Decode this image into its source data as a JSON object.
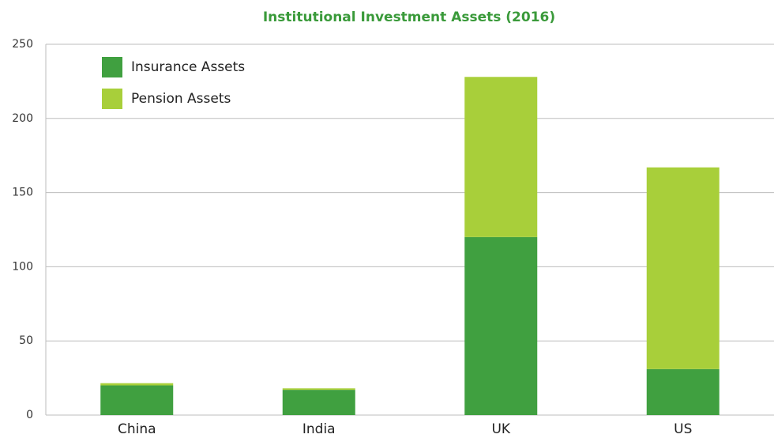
{
  "chart_data": {
    "type": "stacked_bar",
    "title": "Institutional Investment Assets (2016)",
    "categories": [
      "China",
      "India",
      "UK",
      "US"
    ],
    "series": [
      {
        "name": "Insurance Assets",
        "color": "#40a040",
        "values": [
          20,
          17,
          120,
          31
        ]
      },
      {
        "name": "Pension Assets",
        "color": "#a8cf3a",
        "values": [
          1.5,
          1,
          108,
          136
        ]
      }
    ],
    "ylim": [
      0,
      250
    ],
    "yticks": [
      0,
      50,
      100,
      150,
      200,
      250
    ],
    "grid": true,
    "legend": "top-left"
  }
}
